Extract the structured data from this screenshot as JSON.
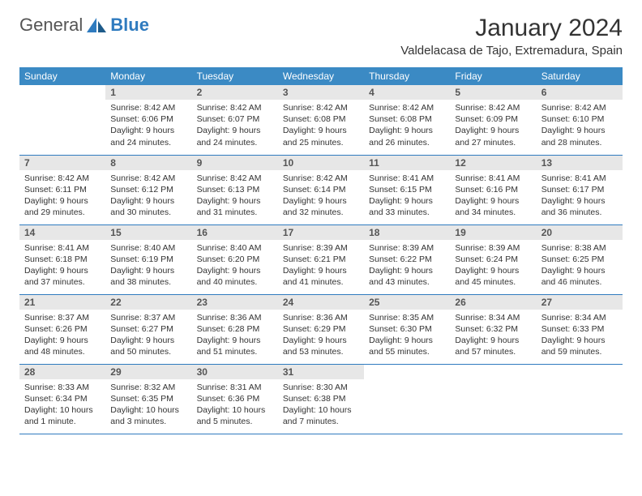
{
  "logo": {
    "text1": "General",
    "text2": "Blue"
  },
  "title": "January 2024",
  "location": "Valdelacasa de Tajo, Extremadura, Spain",
  "colors": {
    "header_bg": "#3b8ac4",
    "header_text": "#ffffff",
    "daynum_bg": "#e7e7e7",
    "row_border": "#2f7bbf",
    "logo_blue": "#2f7bbf"
  },
  "weekdays": [
    "Sunday",
    "Monday",
    "Tuesday",
    "Wednesday",
    "Thursday",
    "Friday",
    "Saturday"
  ],
  "weeks": [
    [
      null,
      {
        "n": "1",
        "sr": "Sunrise: 8:42 AM",
        "ss": "Sunset: 6:06 PM",
        "dl1": "Daylight: 9 hours",
        "dl2": "and 24 minutes."
      },
      {
        "n": "2",
        "sr": "Sunrise: 8:42 AM",
        "ss": "Sunset: 6:07 PM",
        "dl1": "Daylight: 9 hours",
        "dl2": "and 24 minutes."
      },
      {
        "n": "3",
        "sr": "Sunrise: 8:42 AM",
        "ss": "Sunset: 6:08 PM",
        "dl1": "Daylight: 9 hours",
        "dl2": "and 25 minutes."
      },
      {
        "n": "4",
        "sr": "Sunrise: 8:42 AM",
        "ss": "Sunset: 6:08 PM",
        "dl1": "Daylight: 9 hours",
        "dl2": "and 26 minutes."
      },
      {
        "n": "5",
        "sr": "Sunrise: 8:42 AM",
        "ss": "Sunset: 6:09 PM",
        "dl1": "Daylight: 9 hours",
        "dl2": "and 27 minutes."
      },
      {
        "n": "6",
        "sr": "Sunrise: 8:42 AM",
        "ss": "Sunset: 6:10 PM",
        "dl1": "Daylight: 9 hours",
        "dl2": "and 28 minutes."
      }
    ],
    [
      {
        "n": "7",
        "sr": "Sunrise: 8:42 AM",
        "ss": "Sunset: 6:11 PM",
        "dl1": "Daylight: 9 hours",
        "dl2": "and 29 minutes."
      },
      {
        "n": "8",
        "sr": "Sunrise: 8:42 AM",
        "ss": "Sunset: 6:12 PM",
        "dl1": "Daylight: 9 hours",
        "dl2": "and 30 minutes."
      },
      {
        "n": "9",
        "sr": "Sunrise: 8:42 AM",
        "ss": "Sunset: 6:13 PM",
        "dl1": "Daylight: 9 hours",
        "dl2": "and 31 minutes."
      },
      {
        "n": "10",
        "sr": "Sunrise: 8:42 AM",
        "ss": "Sunset: 6:14 PM",
        "dl1": "Daylight: 9 hours",
        "dl2": "and 32 minutes."
      },
      {
        "n": "11",
        "sr": "Sunrise: 8:41 AM",
        "ss": "Sunset: 6:15 PM",
        "dl1": "Daylight: 9 hours",
        "dl2": "and 33 minutes."
      },
      {
        "n": "12",
        "sr": "Sunrise: 8:41 AM",
        "ss": "Sunset: 6:16 PM",
        "dl1": "Daylight: 9 hours",
        "dl2": "and 34 minutes."
      },
      {
        "n": "13",
        "sr": "Sunrise: 8:41 AM",
        "ss": "Sunset: 6:17 PM",
        "dl1": "Daylight: 9 hours",
        "dl2": "and 36 minutes."
      }
    ],
    [
      {
        "n": "14",
        "sr": "Sunrise: 8:41 AM",
        "ss": "Sunset: 6:18 PM",
        "dl1": "Daylight: 9 hours",
        "dl2": "and 37 minutes."
      },
      {
        "n": "15",
        "sr": "Sunrise: 8:40 AM",
        "ss": "Sunset: 6:19 PM",
        "dl1": "Daylight: 9 hours",
        "dl2": "and 38 minutes."
      },
      {
        "n": "16",
        "sr": "Sunrise: 8:40 AM",
        "ss": "Sunset: 6:20 PM",
        "dl1": "Daylight: 9 hours",
        "dl2": "and 40 minutes."
      },
      {
        "n": "17",
        "sr": "Sunrise: 8:39 AM",
        "ss": "Sunset: 6:21 PM",
        "dl1": "Daylight: 9 hours",
        "dl2": "and 41 minutes."
      },
      {
        "n": "18",
        "sr": "Sunrise: 8:39 AM",
        "ss": "Sunset: 6:22 PM",
        "dl1": "Daylight: 9 hours",
        "dl2": "and 43 minutes."
      },
      {
        "n": "19",
        "sr": "Sunrise: 8:39 AM",
        "ss": "Sunset: 6:24 PM",
        "dl1": "Daylight: 9 hours",
        "dl2": "and 45 minutes."
      },
      {
        "n": "20",
        "sr": "Sunrise: 8:38 AM",
        "ss": "Sunset: 6:25 PM",
        "dl1": "Daylight: 9 hours",
        "dl2": "and 46 minutes."
      }
    ],
    [
      {
        "n": "21",
        "sr": "Sunrise: 8:37 AM",
        "ss": "Sunset: 6:26 PM",
        "dl1": "Daylight: 9 hours",
        "dl2": "and 48 minutes."
      },
      {
        "n": "22",
        "sr": "Sunrise: 8:37 AM",
        "ss": "Sunset: 6:27 PM",
        "dl1": "Daylight: 9 hours",
        "dl2": "and 50 minutes."
      },
      {
        "n": "23",
        "sr": "Sunrise: 8:36 AM",
        "ss": "Sunset: 6:28 PM",
        "dl1": "Daylight: 9 hours",
        "dl2": "and 51 minutes."
      },
      {
        "n": "24",
        "sr": "Sunrise: 8:36 AM",
        "ss": "Sunset: 6:29 PM",
        "dl1": "Daylight: 9 hours",
        "dl2": "and 53 minutes."
      },
      {
        "n": "25",
        "sr": "Sunrise: 8:35 AM",
        "ss": "Sunset: 6:30 PM",
        "dl1": "Daylight: 9 hours",
        "dl2": "and 55 minutes."
      },
      {
        "n": "26",
        "sr": "Sunrise: 8:34 AM",
        "ss": "Sunset: 6:32 PM",
        "dl1": "Daylight: 9 hours",
        "dl2": "and 57 minutes."
      },
      {
        "n": "27",
        "sr": "Sunrise: 8:34 AM",
        "ss": "Sunset: 6:33 PM",
        "dl1": "Daylight: 9 hours",
        "dl2": "and 59 minutes."
      }
    ],
    [
      {
        "n": "28",
        "sr": "Sunrise: 8:33 AM",
        "ss": "Sunset: 6:34 PM",
        "dl1": "Daylight: 10 hours",
        "dl2": "and 1 minute."
      },
      {
        "n": "29",
        "sr": "Sunrise: 8:32 AM",
        "ss": "Sunset: 6:35 PM",
        "dl1": "Daylight: 10 hours",
        "dl2": "and 3 minutes."
      },
      {
        "n": "30",
        "sr": "Sunrise: 8:31 AM",
        "ss": "Sunset: 6:36 PM",
        "dl1": "Daylight: 10 hours",
        "dl2": "and 5 minutes."
      },
      {
        "n": "31",
        "sr": "Sunrise: 8:30 AM",
        "ss": "Sunset: 6:38 PM",
        "dl1": "Daylight: 10 hours",
        "dl2": "and 7 minutes."
      },
      null,
      null,
      null
    ]
  ]
}
